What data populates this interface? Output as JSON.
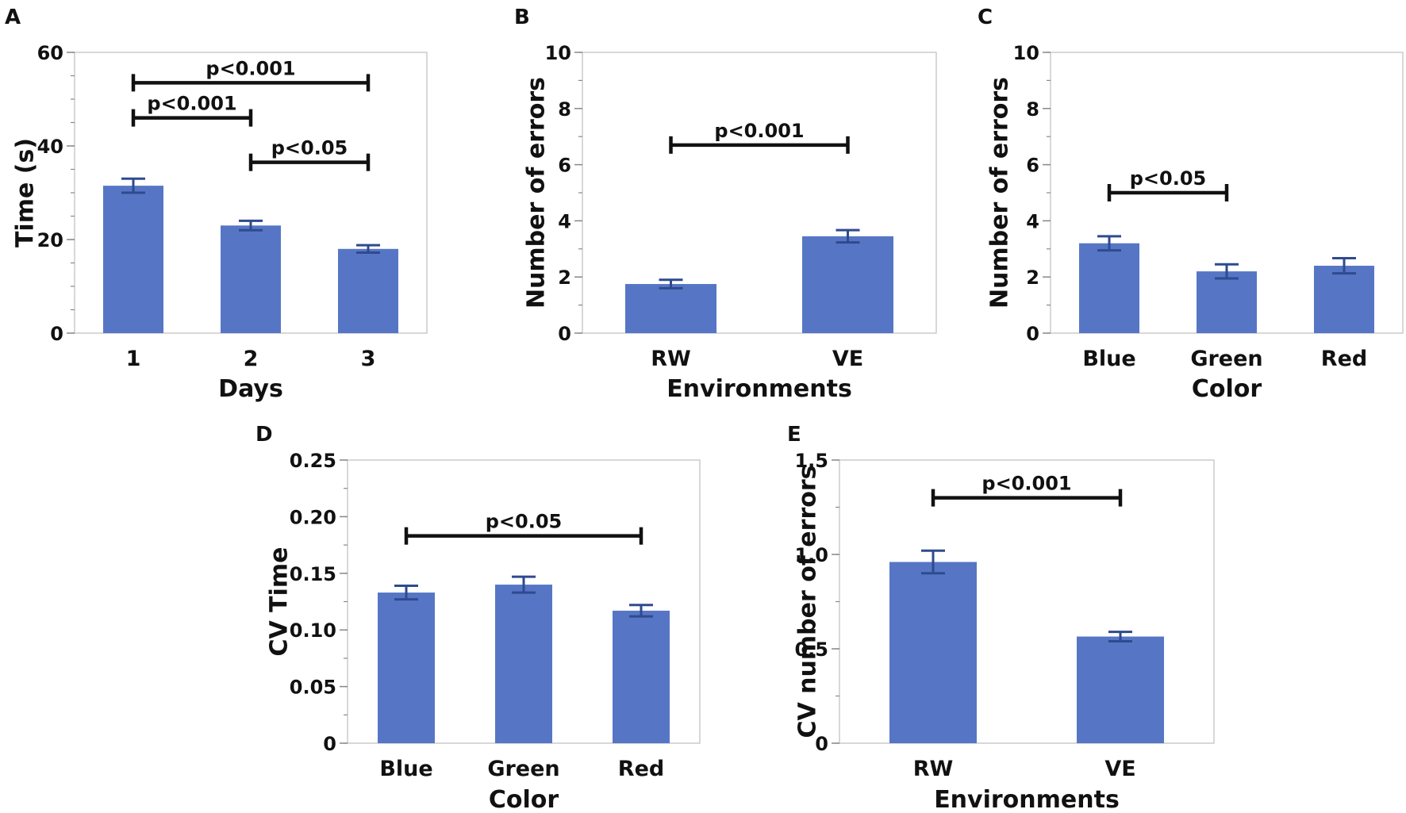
{
  "colors": {
    "bar": "#5676C5",
    "errorbar": "#2F4A8F",
    "axis": "#888888",
    "sigbar": "#111111"
  },
  "chart_data": [
    {
      "panel": "A",
      "type": "bar",
      "categories": [
        "1",
        "2",
        "3"
      ],
      "values": [
        31.5,
        23.0,
        18.0
      ],
      "errors": [
        1.5,
        1.0,
        0.8
      ],
      "xlabel": "Days",
      "ylabel": "Time (s)",
      "ylim": [
        0,
        60
      ],
      "yticks": [
        0,
        20,
        40,
        60
      ],
      "ytick_labels": [
        "0",
        "20",
        "40",
        "60"
      ],
      "yminor": 5,
      "significance": [
        {
          "from": 0,
          "to": 2,
          "level": 53.5,
          "label": "p<0.001"
        },
        {
          "from": 0,
          "to": 1,
          "level": 46.0,
          "label": "p<0.001"
        },
        {
          "from": 1,
          "to": 2,
          "level": 36.5,
          "label": "p<0.05"
        }
      ]
    },
    {
      "panel": "B",
      "type": "bar",
      "categories": [
        "RW",
        "VE"
      ],
      "values": [
        1.75,
        3.45
      ],
      "errors": [
        0.15,
        0.22
      ],
      "xlabel": "Environments",
      "ylabel": "Number of errors",
      "ylim": [
        0,
        10
      ],
      "yticks": [
        0,
        2,
        4,
        6,
        8,
        10
      ],
      "ytick_labels": [
        "0",
        "2",
        "4",
        "6",
        "8",
        "10"
      ],
      "yminor": 1,
      "significance": [
        {
          "from": 0,
          "to": 1,
          "level": 6.7,
          "label": "p<0.001"
        }
      ]
    },
    {
      "panel": "C",
      "type": "bar",
      "categories": [
        "Blue",
        "Green",
        "Red"
      ],
      "values": [
        3.2,
        2.2,
        2.4
      ],
      "errors": [
        0.25,
        0.25,
        0.27
      ],
      "xlabel": "Color",
      "ylabel": "Number of errors",
      "ylim": [
        0,
        10
      ],
      "yticks": [
        0,
        2,
        4,
        6,
        8,
        10
      ],
      "ytick_labels": [
        "0",
        "2",
        "4",
        "6",
        "8",
        "10"
      ],
      "yminor": 1,
      "significance": [
        {
          "from": 0,
          "to": 1,
          "level": 5.0,
          "label": "p<0.05"
        }
      ]
    },
    {
      "panel": "D",
      "type": "bar",
      "categories": [
        "Blue",
        "Green",
        "Red"
      ],
      "values": [
        0.133,
        0.14,
        0.117
      ],
      "errors": [
        0.006,
        0.007,
        0.005
      ],
      "xlabel": "Color",
      "ylabel": "CV Time",
      "ylim": [
        0,
        0.25
      ],
      "yticks": [
        0,
        0.05,
        0.1,
        0.15,
        0.2,
        0.25
      ],
      "ytick_labels": [
        "0",
        "0.05",
        "0.10",
        "0.15",
        "0.20",
        "0.25"
      ],
      "yminor": 0.025,
      "significance": [
        {
          "from": 0,
          "to": 2,
          "level": 0.183,
          "label": "p<0.05"
        }
      ]
    },
    {
      "panel": "E",
      "type": "bar",
      "categories": [
        "RW",
        "VE"
      ],
      "values": [
        0.96,
        0.565
      ],
      "errors": [
        0.06,
        0.025
      ],
      "xlabel": "Environments",
      "ylabel": "CV number of errors",
      "ylim": [
        0,
        1.5
      ],
      "yticks": [
        0,
        0.5,
        1.0,
        1.5
      ],
      "ytick_labels": [
        "0",
        "0.5",
        "1.0",
        "1.5"
      ],
      "yminor": 0.25,
      "significance": [
        {
          "from": 0,
          "to": 1,
          "level": 1.3,
          "label": "p<0.001"
        }
      ]
    }
  ]
}
